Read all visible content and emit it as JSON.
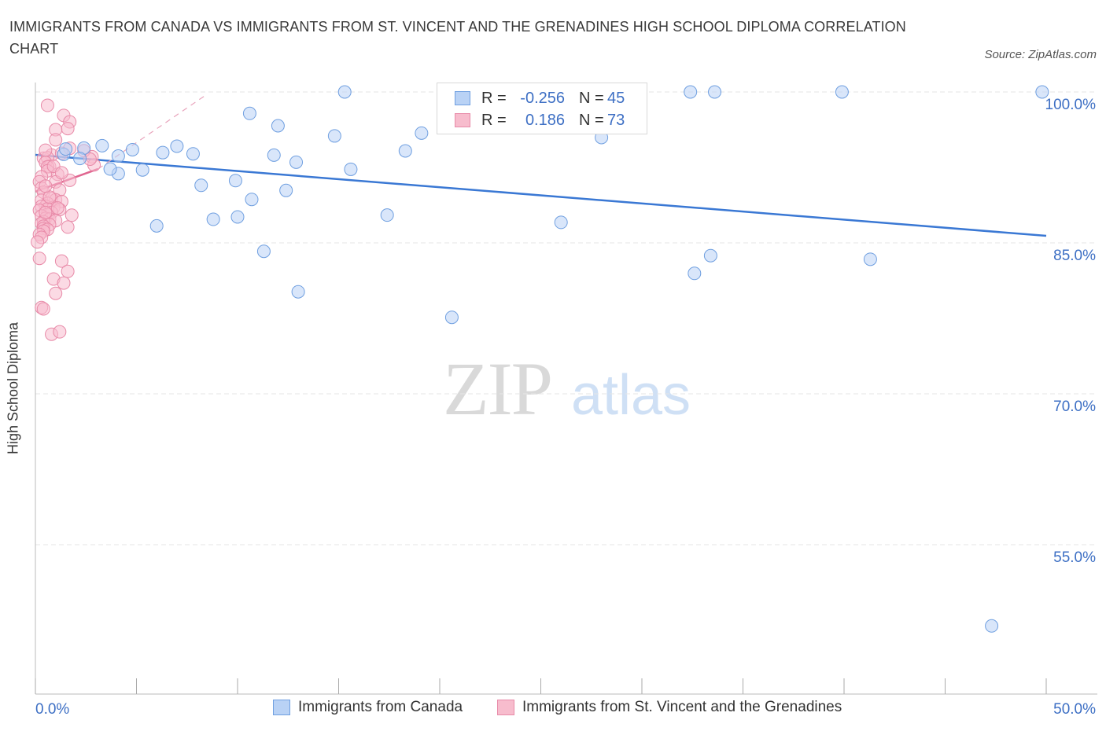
{
  "title": "IMMIGRANTS FROM CANADA VS IMMIGRANTS FROM ST. VINCENT AND THE GRENADINES HIGH SCHOOL DIPLOMA CORRELATION CHART",
  "source": "Source: ZipAtlas.com",
  "watermark": {
    "zip": "ZIP",
    "atlas": "atlas"
  },
  "legend": {
    "r_label": "R =",
    "n_label": "N =",
    "rows": [
      {
        "r": "-0.256",
        "n": "45"
      },
      {
        "r": "0.186",
        "n": "73"
      }
    ]
  },
  "colors": {
    "blue_fill": "#b9d2f5",
    "blue_stroke": "#6f9fe0",
    "blue_line": "#3a78d4",
    "pink_fill": "#f7bccd",
    "pink_stroke": "#e88aa8",
    "pink_line": "#e06690",
    "tick_label": "#3d6fc4",
    "grid": "#e6e6e6"
  },
  "chart_data": {
    "type": "scatter",
    "title": "IMMIGRANTS FROM CANADA VS IMMIGRANTS FROM ST. VINCENT AND THE GRENADINES HIGH SCHOOL DIPLOMA CORRELATION CHART",
    "xlabel": "",
    "ylabel": "High School Diploma",
    "xlim": [
      0,
      50
    ],
    "ylim": [
      0.4,
      1.0
    ],
    "x_tick_labels": [
      "0.0%",
      "50.0%"
    ],
    "y_ticks": [
      0.55,
      0.7,
      0.85,
      1.0
    ],
    "y_tick_labels": [
      "55.0%",
      "70.0%",
      "85.0%",
      "100.0%"
    ],
    "grid": true,
    "legend_position": "bottom",
    "series": [
      {
        "name": "Immigrants from Canada",
        "color": "blue",
        "r": -0.256,
        "n": 45,
        "trend": {
          "x0": 0,
          "y0": 0.9375,
          "x1": 50,
          "y1": 0.857
        },
        "points": [
          [
            2.4,
            0.9442
          ],
          [
            3.3,
            0.9466
          ],
          [
            4.8,
            0.9426
          ],
          [
            6.3,
            0.9397
          ],
          [
            7.0,
            0.9461
          ],
          [
            7.8,
            0.9385
          ],
          [
            10.6,
            0.9787
          ],
          [
            11.8,
            0.9372
          ],
          [
            14.8,
            0.9563
          ],
          [
            18.3,
            0.9414
          ],
          [
            19.1,
            0.9591
          ],
          [
            28.0,
            0.9547
          ],
          [
            15.3,
            1.0
          ],
          [
            25.3,
            1.0
          ],
          [
            23.6,
            1.0
          ],
          [
            32.4,
            1.0
          ],
          [
            33.6,
            1.0
          ],
          [
            39.9,
            1.0
          ],
          [
            49.8,
            1.0
          ],
          [
            12.0,
            0.9664
          ],
          [
            15.6,
            0.9231
          ],
          [
            12.9,
            0.9302
          ],
          [
            9.9,
            0.9119
          ],
          [
            4.1,
            0.9188
          ],
          [
            5.3,
            0.9225
          ],
          [
            3.7,
            0.9234
          ],
          [
            10.7,
            0.8932
          ],
          [
            12.4,
            0.9021
          ],
          [
            8.2,
            0.9072
          ],
          [
            1.4,
            0.938
          ],
          [
            17.4,
            0.8776
          ],
          [
            6.0,
            0.8669
          ],
          [
            8.8,
            0.8734
          ],
          [
            10.0,
            0.8758
          ],
          [
            26.0,
            0.8704
          ],
          [
            11.3,
            0.8416
          ],
          [
            13.0,
            0.8014
          ],
          [
            20.6,
            0.776
          ],
          [
            33.4,
            0.8373
          ],
          [
            32.6,
            0.8197
          ],
          [
            41.3,
            0.8337
          ],
          [
            47.3,
            0.4693
          ],
          [
            1.5,
            0.9433
          ],
          [
            2.2,
            0.9339
          ],
          [
            4.1,
            0.9363
          ]
        ]
      },
      {
        "name": "Immigrants from St. Vincent and the Grenadines",
        "color": "pink",
        "r": 0.186,
        "n": 73,
        "trend": {
          "x0": 0,
          "y0": 0.901,
          "x1": 3.1,
          "y1": 0.9235
        },
        "trend_ext": {
          "x0": 3.1,
          "y0": 0.9235,
          "x1": 8.4,
          "y1": 0.9965
        },
        "points": [
          [
            0.6,
            0.9867
          ],
          [
            1.4,
            0.9767
          ],
          [
            1.7,
            0.9703
          ],
          [
            1.6,
            0.9636
          ],
          [
            1.0,
            0.9625
          ],
          [
            1.0,
            0.9524
          ],
          [
            1.7,
            0.944
          ],
          [
            2.8,
            0.9356
          ],
          [
            2.9,
            0.9275
          ],
          [
            0.8,
            0.9373
          ],
          [
            0.4,
            0.9342
          ],
          [
            0.6,
            0.9346
          ],
          [
            0.5,
            0.9299
          ],
          [
            0.7,
            0.9259
          ],
          [
            0.6,
            0.9256
          ],
          [
            0.6,
            0.9216
          ],
          [
            1.1,
            0.9182
          ],
          [
            0.3,
            0.9157
          ],
          [
            1.0,
            0.9106
          ],
          [
            1.7,
            0.9122
          ],
          [
            0.2,
            0.9107
          ],
          [
            0.3,
            0.9045
          ],
          [
            1.2,
            0.9024
          ],
          [
            0.4,
            0.9003
          ],
          [
            0.8,
            0.8941
          ],
          [
            1.0,
            0.8928
          ],
          [
            1.3,
            0.8911
          ],
          [
            0.3,
            0.8924
          ],
          [
            0.6,
            0.8893
          ],
          [
            0.5,
            0.8864
          ],
          [
            0.3,
            0.8864
          ],
          [
            0.9,
            0.8853
          ],
          [
            0.6,
            0.8838
          ],
          [
            1.2,
            0.8831
          ],
          [
            0.2,
            0.8824
          ],
          [
            0.8,
            0.8802
          ],
          [
            0.6,
            0.8782
          ],
          [
            1.8,
            0.8775
          ],
          [
            0.3,
            0.8768
          ],
          [
            0.5,
            0.8743
          ],
          [
            0.7,
            0.8736
          ],
          [
            1.0,
            0.8721
          ],
          [
            0.4,
            0.871
          ],
          [
            0.3,
            0.8695
          ],
          [
            0.7,
            0.8682
          ],
          [
            0.4,
            0.8665
          ],
          [
            0.4,
            0.8643
          ],
          [
            1.6,
            0.8657
          ],
          [
            0.6,
            0.8634
          ],
          [
            0.4,
            0.8617
          ],
          [
            0.2,
            0.8584
          ],
          [
            0.3,
            0.8555
          ],
          [
            0.1,
            0.8509
          ],
          [
            0.2,
            0.8346
          ],
          [
            1.3,
            0.8319
          ],
          [
            1.6,
            0.8217
          ],
          [
            0.9,
            0.8141
          ],
          [
            1.4,
            0.8101
          ],
          [
            1.0,
            0.7998
          ],
          [
            0.3,
            0.7857
          ],
          [
            0.4,
            0.7844
          ],
          [
            0.8,
            0.7592
          ],
          [
            1.2,
            0.7616
          ],
          [
            1.3,
            0.9391
          ],
          [
            0.5,
            0.9421
          ],
          [
            0.9,
            0.9262
          ],
          [
            1.3,
            0.9196
          ],
          [
            0.7,
            0.8955
          ],
          [
            1.1,
            0.8847
          ],
          [
            0.5,
            0.8802
          ],
          [
            2.4,
            0.9416
          ],
          [
            2.7,
            0.9332
          ],
          [
            0.5,
            0.9064
          ]
        ]
      }
    ]
  },
  "bottom_legend": [
    "Immigrants from Canada",
    "Immigrants from St. Vincent and the Grenadines"
  ]
}
